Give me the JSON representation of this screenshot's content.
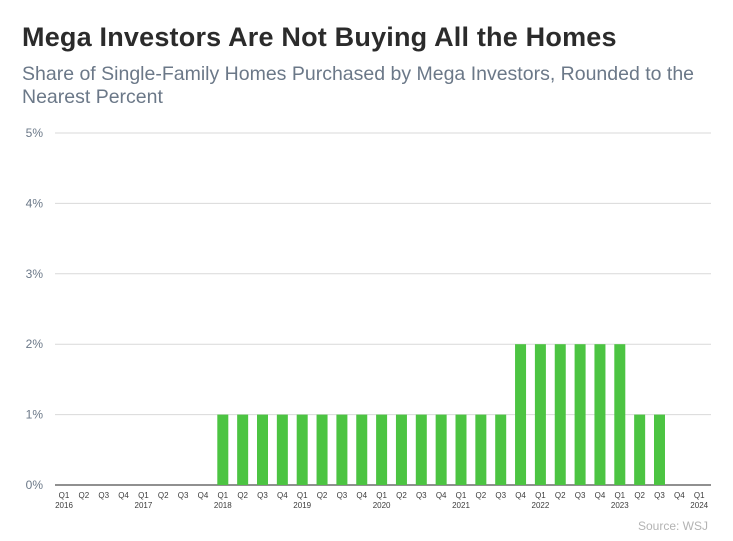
{
  "title": "Mega Investors Are Not Buying All the Homes",
  "subtitle": "Share of Single-Family Homes Purchased by Mega Investors, Rounded to the Nearest Percent",
  "source": "Source: WSJ",
  "colors": {
    "bar": "#4cc442",
    "grid": "#d9d9d9",
    "text": "#6b7888"
  },
  "chart_data": {
    "type": "bar",
    "title": "Mega Investors Are Not Buying All the Homes",
    "subtitle": "Share of Single-Family Homes Purchased by Mega Investors, Rounded to the Nearest Percent",
    "xlabel": "",
    "ylabel": "",
    "ylim": [
      0,
      5
    ],
    "y_ticks": [
      "0%",
      "1%",
      "2%",
      "3%",
      "4%",
      "5%"
    ],
    "grid": true,
    "legend": "none",
    "categories": [
      "Q1 2016",
      "Q2 2016",
      "Q3 2016",
      "Q4 2016",
      "Q1 2017",
      "Q2 2017",
      "Q3 2017",
      "Q4 2017",
      "Q1 2018",
      "Q2 2018",
      "Q3 2018",
      "Q4 2018",
      "Q1 2019",
      "Q2 2019",
      "Q3 2019",
      "Q4 2019",
      "Q1 2020",
      "Q2 2020",
      "Q3 2020",
      "Q4 2020",
      "Q1 2021",
      "Q2 2021",
      "Q3 2021",
      "Q4 2021",
      "Q1 2022",
      "Q2 2022",
      "Q3 2022",
      "Q4 2022",
      "Q1 2023",
      "Q2 2023",
      "Q3 2023",
      "Q4 2023",
      "Q1 2024"
    ],
    "quarter_labels": [
      "Q1",
      "Q2",
      "Q3",
      "Q4",
      "Q1",
      "Q2",
      "Q3",
      "Q4",
      "Q1",
      "Q2",
      "Q3",
      "Q4",
      "Q1",
      "Q2",
      "Q3",
      "Q4",
      "Q1",
      "Q2",
      "Q3",
      "Q4",
      "Q1",
      "Q2",
      "Q3",
      "Q4",
      "Q1",
      "Q2",
      "Q3",
      "Q4",
      "Q1",
      "Q2",
      "Q3",
      "Q4",
      "Q1"
    ],
    "year_labels": [
      {
        "index": 0,
        "label": "2016"
      },
      {
        "index": 4,
        "label": "2017"
      },
      {
        "index": 8,
        "label": "2018"
      },
      {
        "index": 12,
        "label": "2019"
      },
      {
        "index": 16,
        "label": "2020"
      },
      {
        "index": 20,
        "label": "2021"
      },
      {
        "index": 24,
        "label": "2022"
      },
      {
        "index": 28,
        "label": "2023"
      },
      {
        "index": 32,
        "label": "2024"
      }
    ],
    "values": [
      0,
      0,
      0,
      0,
      0,
      0,
      0,
      0,
      1,
      1,
      1,
      1,
      1,
      1,
      1,
      1,
      1,
      1,
      1,
      1,
      1,
      1,
      1,
      2,
      2,
      2,
      2,
      2,
      2,
      1,
      1,
      0,
      0
    ]
  }
}
